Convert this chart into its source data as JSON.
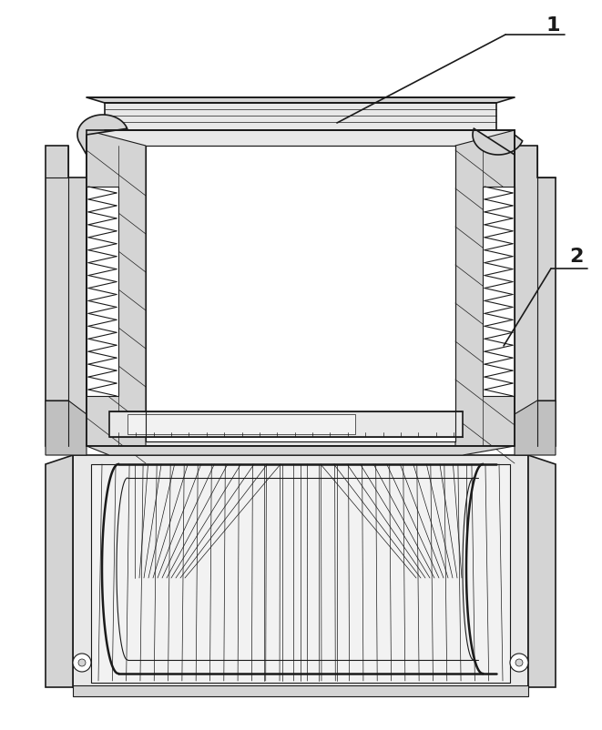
{
  "bg_color": "#ffffff",
  "line_color": "#1a1a1a",
  "gray1": "#e8e8e8",
  "gray2": "#d4d4d4",
  "gray3": "#c0c0c0",
  "gray4": "#f2f2f2",
  "label_1": "1",
  "label_2": "2",
  "figsize": [
    6.61,
    8.02
  ],
  "dpi": 100
}
